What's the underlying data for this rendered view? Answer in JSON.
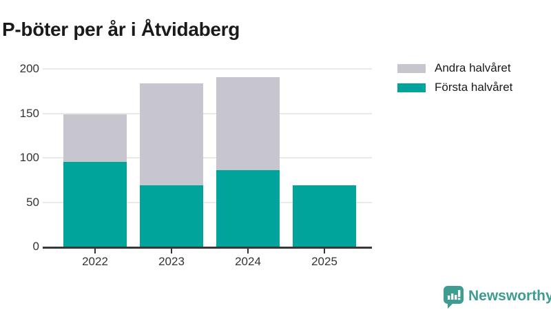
{
  "title": "P-böter per år i Åtvidaberg",
  "chart_data": {
    "type": "bar",
    "stacked": true,
    "title": "P-böter per år i Åtvidaberg",
    "categories": [
      "2022",
      "2023",
      "2024",
      "2025"
    ],
    "series": [
      {
        "name": "Första halvåret",
        "color": "#00A49A",
        "values": [
          95,
          69,
          86,
          69
        ]
      },
      {
        "name": "Andra halvåret",
        "color": "#C7C5CE",
        "values": [
          54,
          115,
          105,
          0
        ]
      }
    ],
    "totals": [
      149,
      184,
      191,
      69
    ],
    "xlabel": "",
    "ylabel": "",
    "ylim": [
      0,
      200
    ],
    "yticks": [
      0,
      50,
      100,
      150,
      200
    ],
    "grid": "horizontal",
    "legend_position": "top-right",
    "legend_order": [
      "Andra halvåret",
      "Första halvåret"
    ]
  },
  "legend": {
    "items": [
      {
        "label": "Andra halvåret",
        "color": "#C7C5CE"
      },
      {
        "label": "Första halvåret",
        "color": "#00A49A"
      }
    ]
  },
  "branding": {
    "label": "Newsworthy",
    "color": "#3E9C90"
  },
  "colors": {
    "first_half": "#00A49A",
    "second_half": "#C7C5CE",
    "gridline": "#E9E9E9",
    "axis": "#333333",
    "title_text": "#1A1A1A"
  }
}
